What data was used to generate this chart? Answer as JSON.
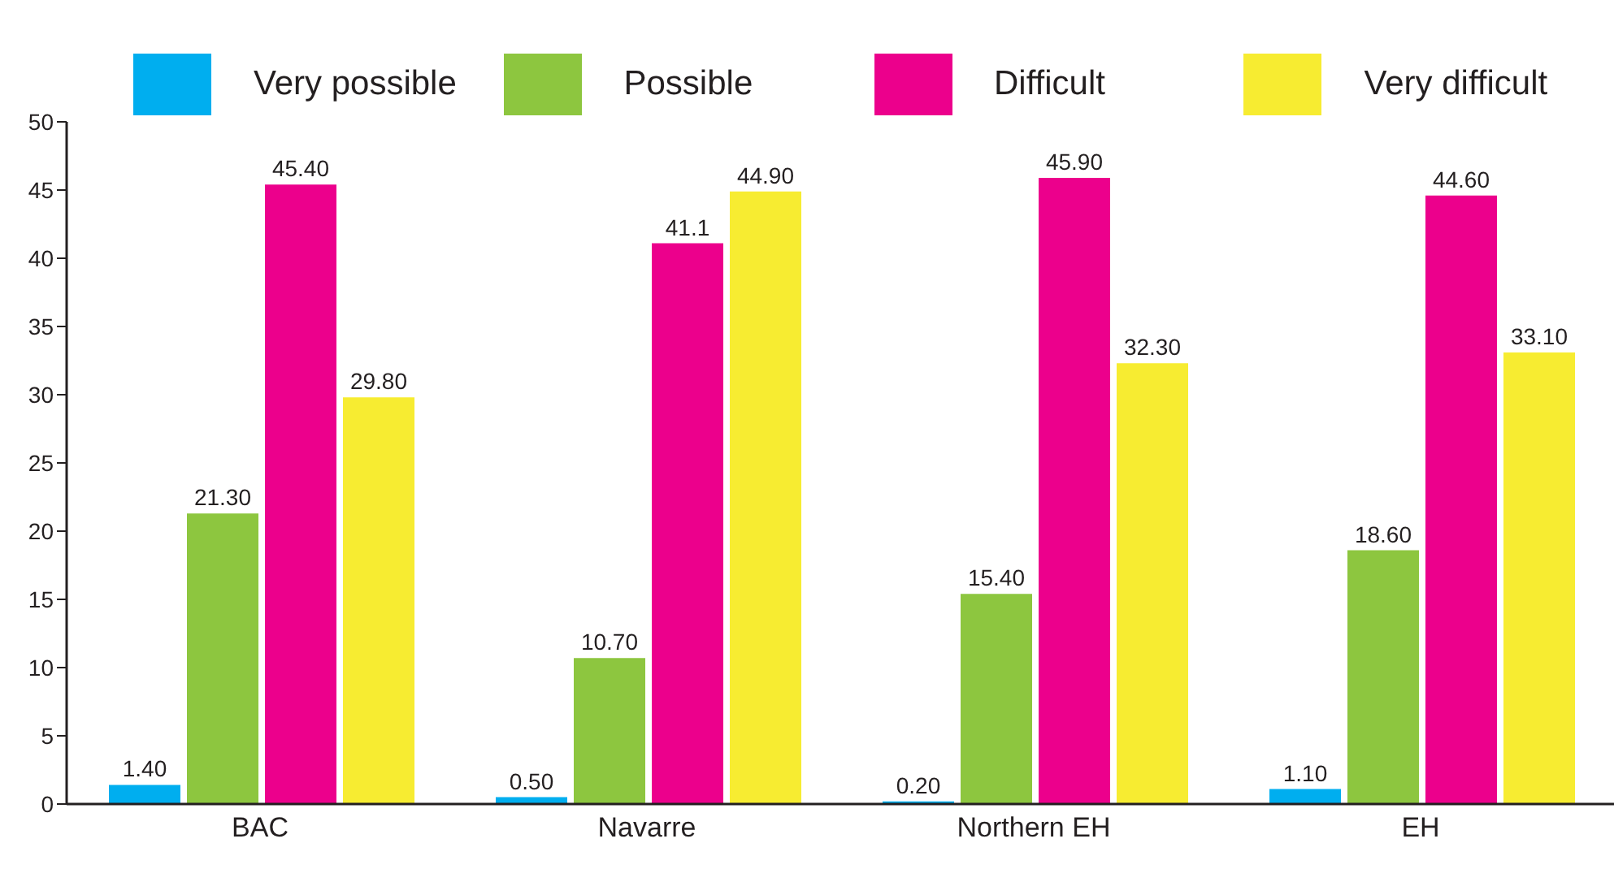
{
  "chart_data": {
    "type": "bar",
    "categories": [
      "BAC",
      "Navarre",
      "Northern EH",
      "EH"
    ],
    "series": [
      {
        "name": "Very possible",
        "color": "#00aeef",
        "values": [
          1.4,
          0.5,
          0.2,
          1.1
        ],
        "value_labels": [
          "1.40",
          "0.50",
          "0.20",
          "1.10"
        ]
      },
      {
        "name": "Possible",
        "color": "#8dc63f",
        "values": [
          21.3,
          10.7,
          15.4,
          18.6
        ],
        "value_labels": [
          "21.30",
          "10.70",
          "15.40",
          "18.60"
        ]
      },
      {
        "name": "Difficult",
        "color": "#ec008c",
        "values": [
          45.4,
          41.1,
          45.9,
          44.6
        ],
        "value_labels": [
          "45.40",
          "41.1",
          "45.90",
          "44.60"
        ]
      },
      {
        "name": "Very difficult",
        "color": "#f7ec31",
        "values": [
          29.8,
          44.9,
          32.3,
          33.1
        ],
        "value_labels": [
          "29.80",
          "44.90",
          "32.30",
          "33.10"
        ]
      }
    ],
    "ylim": [
      0,
      50
    ],
    "yticks": [
      0,
      5,
      10,
      15,
      20,
      25,
      30,
      35,
      40,
      45,
      50
    ],
    "legend": "top"
  }
}
